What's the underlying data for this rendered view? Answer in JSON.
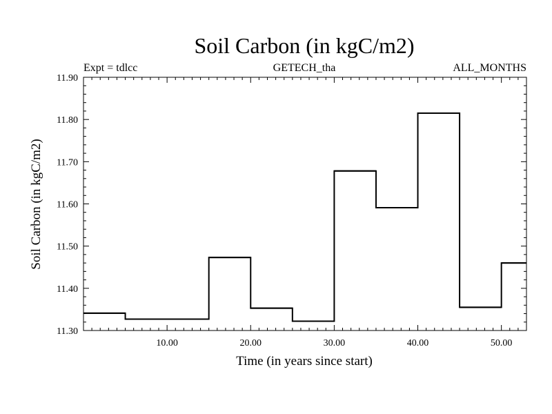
{
  "chart_data": {
    "type": "line",
    "step": true,
    "title": "Soil Carbon (in kgC/m2)",
    "header_left": "Expt = tdlcc",
    "header_center": "GETECH_tha",
    "header_right": "ALL_MONTHS",
    "xlabel": "Time (in years since start)",
    "ylabel": "Soil Carbon (in kgC/m2)",
    "xlim": [
      0,
      53
    ],
    "ylim": [
      11.3,
      11.9
    ],
    "x_ticks": [
      10,
      20,
      30,
      40,
      50
    ],
    "x_tick_labels": [
      "10.00",
      "20.00",
      "30.00",
      "40.00",
      "50.00"
    ],
    "y_ticks": [
      11.3,
      11.4,
      11.5,
      11.6,
      11.7,
      11.8,
      11.9
    ],
    "y_tick_labels": [
      "11.30",
      "11.40",
      "11.50",
      "11.60",
      "11.70",
      "11.80",
      "11.90"
    ],
    "series": [
      {
        "segments": [
          {
            "x_start": 0,
            "x_end": 5,
            "y": 11.341
          },
          {
            "x_start": 5,
            "x_end": 15,
            "y": 11.327
          },
          {
            "x_start": 15,
            "x_end": 20,
            "y": 11.473
          },
          {
            "x_start": 20,
            "x_end": 25,
            "y": 11.353
          },
          {
            "x_start": 25,
            "x_end": 30,
            "y": 11.322
          },
          {
            "x_start": 30,
            "x_end": 35,
            "y": 11.678
          },
          {
            "x_start": 35,
            "x_end": 40,
            "y": 11.591
          },
          {
            "x_start": 40,
            "x_end": 45,
            "y": 11.815
          },
          {
            "x_start": 45,
            "x_end": 50,
            "y": 11.355
          },
          {
            "x_start": 50,
            "x_end": 53,
            "y": 11.46
          }
        ]
      }
    ],
    "grid": false,
    "line_color": "#000000",
    "background": "#ffffff"
  }
}
